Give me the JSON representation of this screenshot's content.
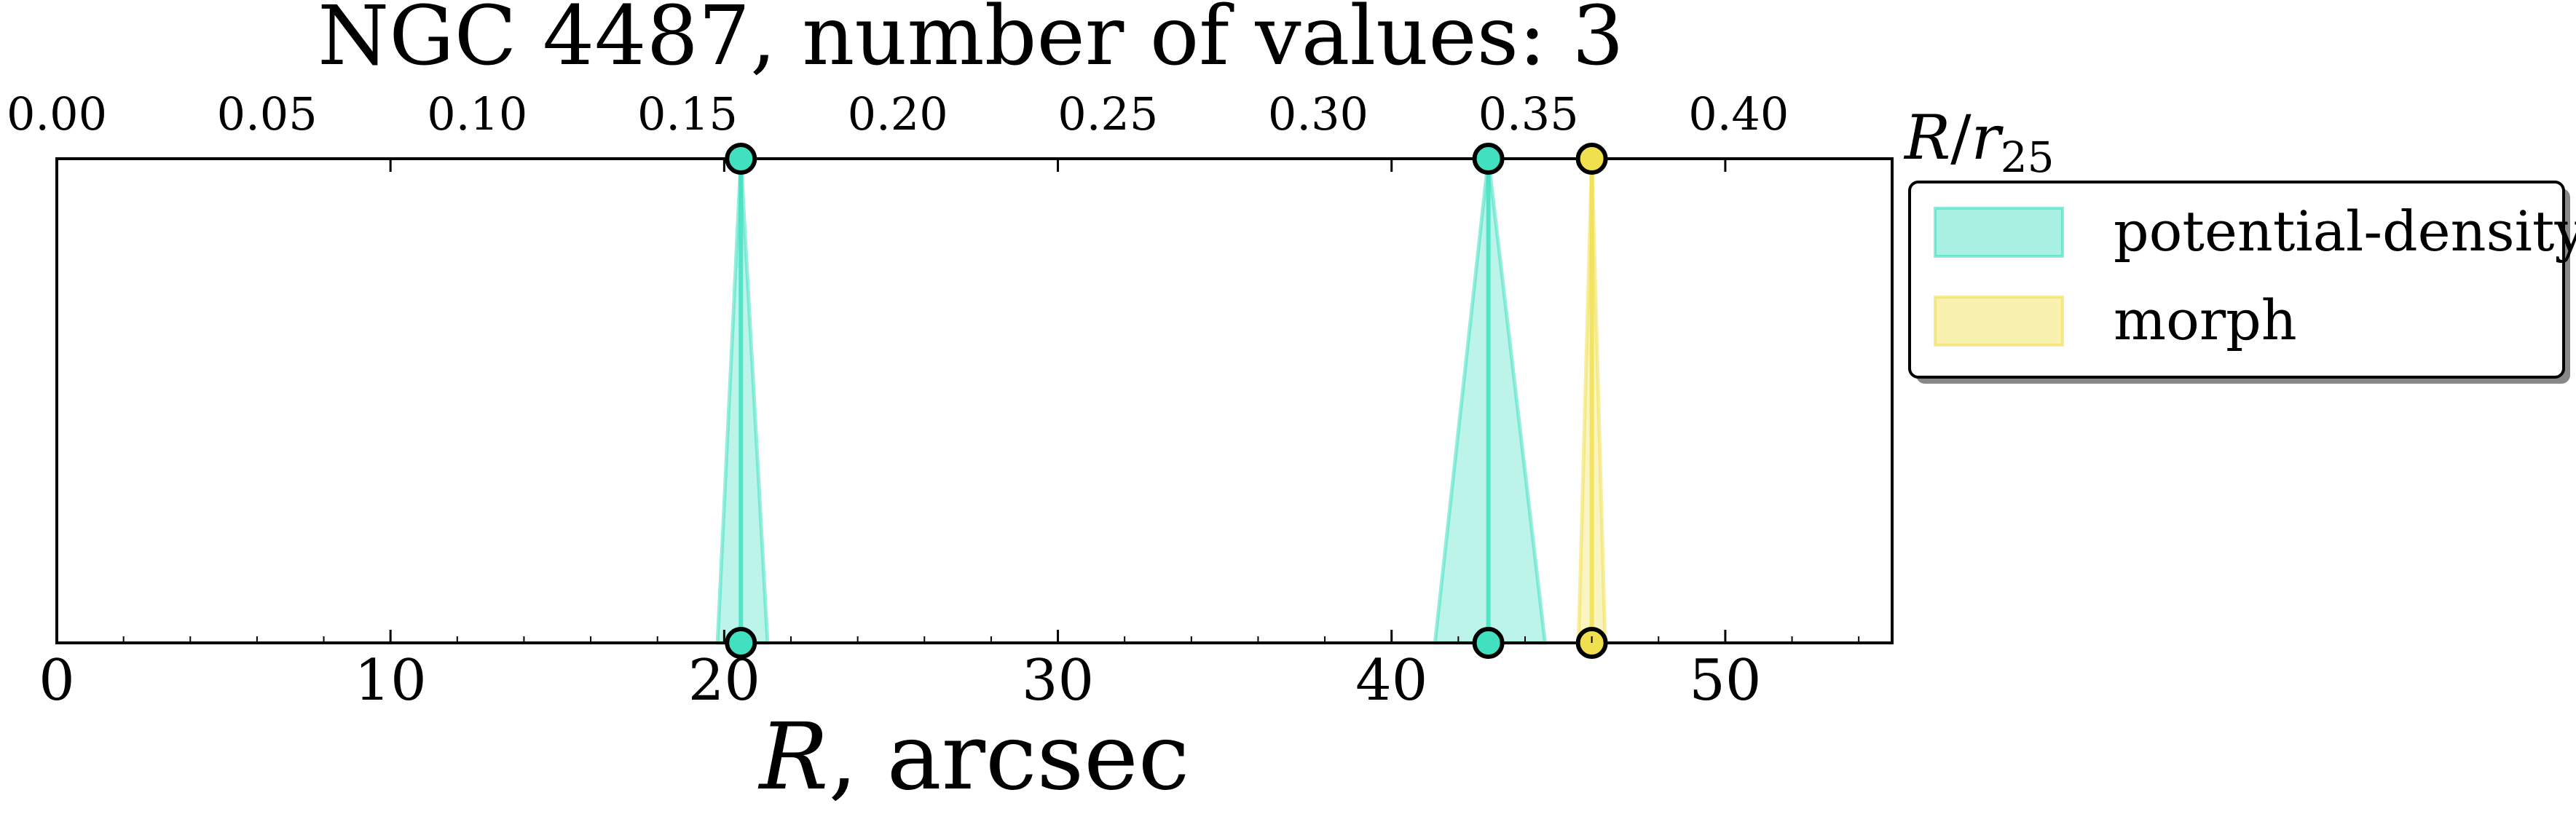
{
  "chart_data": {
    "type": "area",
    "title": "NGC 4487, number of values: 3",
    "xlabel": {
      "var": "R",
      "rest": ", arcsec"
    },
    "x2label": {
      "var": "R",
      "slash": "/",
      "r": "r",
      "sub": "25"
    },
    "xlim": [
      0,
      55
    ],
    "x2lim": [
      0,
      0.4365
    ],
    "x_ticks": [
      0,
      10,
      20,
      30,
      40,
      50
    ],
    "x_tick_labels": [
      "0",
      "10",
      "20",
      "30",
      "40",
      "50"
    ],
    "x2_ticks": [
      0.0,
      0.05,
      0.1,
      0.15,
      0.2,
      0.25,
      0.3,
      0.35,
      0.4
    ],
    "x2_tick_labels": [
      "0.00",
      "0.05",
      "0.10",
      "0.15",
      "0.20",
      "0.25",
      "0.30",
      "0.35",
      "0.40"
    ],
    "grid": false,
    "legend_position": "outside-right-top",
    "series": [
      {
        "name": "potential-density",
        "color": "#40e0c0",
        "values": [
          {
            "x": 20.5,
            "lo": 19.8,
            "hi": 21.3
          },
          {
            "x": 42.9,
            "lo": 41.3,
            "hi": 44.6
          }
        ]
      },
      {
        "name": "morph",
        "color": "#f0e050",
        "values": [
          {
            "x": 46.0,
            "lo": 45.6,
            "hi": 46.4
          }
        ]
      }
    ]
  }
}
